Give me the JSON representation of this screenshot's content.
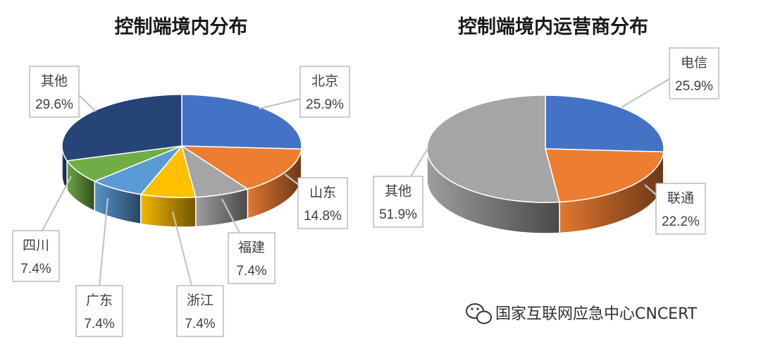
{
  "chart_data": [
    {
      "type": "pie",
      "title": "控制端境内分布",
      "slices": [
        {
          "label": "北京",
          "value": 25.9,
          "display": "25.9%",
          "color": "#4472c4"
        },
        {
          "label": "山东",
          "value": 14.8,
          "display": "14.8%",
          "color": "#ed7d31"
        },
        {
          "label": "福建",
          "value": 7.4,
          "display": "7.4%",
          "color": "#a5a5a5"
        },
        {
          "label": "浙江",
          "value": 7.4,
          "display": "7.4%",
          "color": "#ffc000"
        },
        {
          "label": "广东",
          "value": 7.4,
          "display": "7.4%",
          "color": "#5b9bd5"
        },
        {
          "label": "四川",
          "value": 7.4,
          "display": "7.4%",
          "color": "#70ad47"
        },
        {
          "label": "其他",
          "value": 29.6,
          "display": "29.6%",
          "color": "#264478"
        }
      ]
    },
    {
      "type": "pie",
      "title": "控制端境内运营商分布",
      "slices": [
        {
          "label": "电信",
          "value": 25.9,
          "display": "25.9%",
          "color": "#4472c4"
        },
        {
          "label": "联通",
          "value": 22.2,
          "display": "22.2%",
          "color": "#ed7d31"
        },
        {
          "label": "其他",
          "value": 51.9,
          "display": "51.9%",
          "color": "#a5a5a5"
        }
      ]
    }
  ],
  "watermark": {
    "text": "国家互联网应急中心CNCERT",
    "icon": "wechat-icon"
  }
}
